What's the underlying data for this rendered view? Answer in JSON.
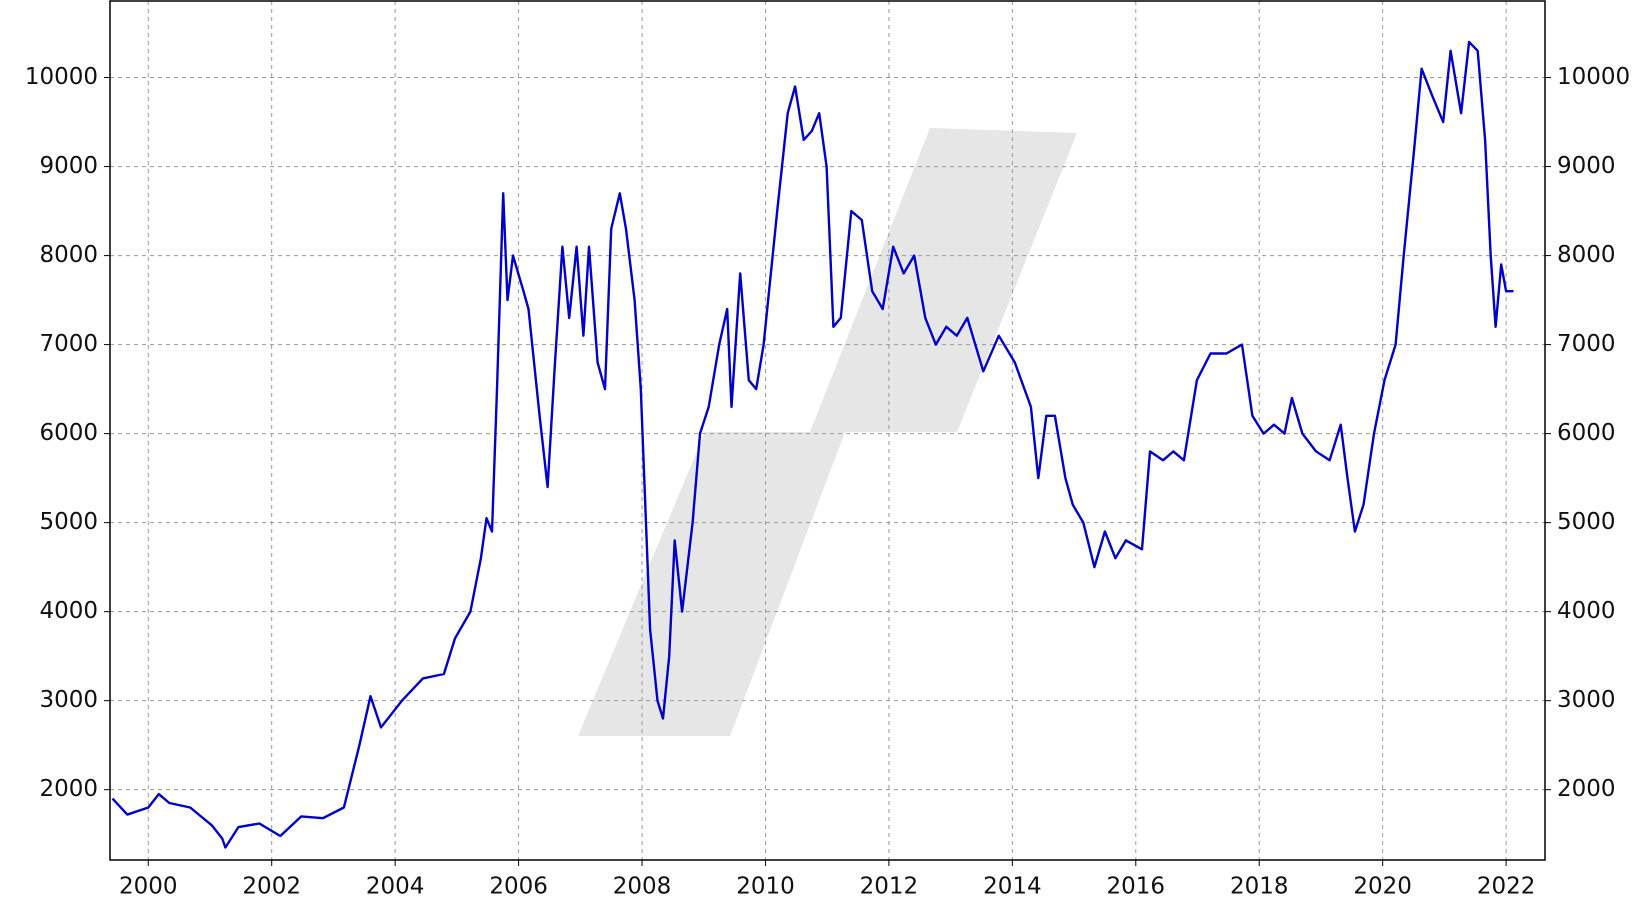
{
  "chart_data": {
    "type": "line",
    "x": [
      1999.42,
      1999.66,
      2000.0,
      2000.17,
      2000.34,
      2000.68,
      2001.03,
      2001.2,
      2001.25,
      2001.46,
      2001.8,
      2002.14,
      2002.48,
      2002.83,
      2003.17,
      2003.42,
      2003.6,
      2003.77,
      2004.11,
      2004.45,
      2004.79,
      2004.97,
      2005.22,
      2005.39,
      2005.48,
      2005.57,
      2005.65,
      2005.75,
      2005.82,
      2005.91,
      2006.08,
      2006.16,
      2006.34,
      2006.47,
      2006.59,
      2006.71,
      2006.82,
      2006.94,
      2007.05,
      2007.14,
      2007.28,
      2007.4,
      2007.5,
      2007.64,
      2007.74,
      2007.88,
      2007.98,
      2008.13,
      2008.25,
      2008.34,
      2008.44,
      2008.53,
      2008.65,
      2008.82,
      2008.94,
      2009.08,
      2009.25,
      2009.38,
      2009.45,
      2009.59,
      2009.73,
      2009.85,
      2009.97,
      2010.19,
      2010.36,
      2010.48,
      2010.62,
      2010.75,
      2010.87,
      2010.99,
      2011.1,
      2011.22,
      2011.39,
      2011.56,
      2011.73,
      2011.9,
      2012.07,
      2012.24,
      2012.41,
      2012.59,
      2012.76,
      2012.93,
      2013.1,
      2013.27,
      2013.53,
      2013.78,
      2014.04,
      2014.3,
      2014.42,
      2014.55,
      2014.69,
      2014.86,
      2014.98,
      2015.15,
      2015.33,
      2015.5,
      2015.67,
      2015.84,
      2016.1,
      2016.23,
      2016.44,
      2016.61,
      2016.78,
      2016.99,
      2017.21,
      2017.47,
      2017.72,
      2017.89,
      2018.07,
      2018.24,
      2018.41,
      2018.53,
      2018.7,
      2018.92,
      2019.14,
      2019.32,
      2019.43,
      2019.55,
      2019.69,
      2019.86,
      2020.03,
      2020.21,
      2020.34,
      2020.51,
      2020.63,
      2020.8,
      2020.98,
      2021.1,
      2021.27,
      2021.4,
      2021.54,
      2021.66,
      2021.75,
      2021.83,
      2021.92,
      2022.0,
      2022.12
    ],
    "series": [
      {
        "color": "#0000cc",
        "values": [
          1900,
          1720,
          1800,
          1950,
          1850,
          1800,
          1600,
          1450,
          1350,
          1580,
          1620,
          1480,
          1700,
          1680,
          1800,
          2500,
          3050,
          2700,
          3000,
          3250,
          3300,
          3700,
          4000,
          4600,
          5050,
          4900,
          6500,
          8700,
          7500,
          8000,
          7600,
          7400,
          6200,
          5400,
          6800,
          8100,
          7300,
          8100,
          7100,
          8100,
          6800,
          6500,
          8300,
          8700,
          8300,
          7500,
          6500,
          3800,
          3000,
          2800,
          3500,
          4800,
          4000,
          5000,
          6000,
          6300,
          7000,
          7400,
          6300,
          7800,
          6600,
          6500,
          7000,
          8500,
          9600,
          9900,
          9300,
          9400,
          9600,
          9000,
          7200,
          7300,
          8500,
          8400,
          7600,
          7400,
          8100,
          7800,
          8000,
          7300,
          7000,
          7200,
          7100,
          7300,
          6700,
          7100,
          6800,
          6300,
          5500,
          6200,
          6200,
          5500,
          5200,
          5000,
          4500,
          4900,
          4600,
          4800,
          4700,
          5800,
          5700,
          5800,
          5700,
          6600,
          6900,
          6900,
          7000,
          6200,
          6000,
          6100,
          6000,
          6400,
          6000,
          5800,
          5700,
          6100,
          5500,
          4900,
          5200,
          6000,
          6600,
          7000,
          8000,
          9200,
          10100,
          9800,
          9500,
          10300,
          9600,
          10400,
          10300,
          9300,
          8000,
          7200,
          7900,
          7600,
          7600
        ]
      }
    ],
    "xlim": [
      1999.38,
      2022.63
    ],
    "xticks": [
      2000,
      2002,
      2004,
      2006,
      2008,
      2010,
      2012,
      2014,
      2016,
      2018,
      2020,
      2022
    ],
    "ylim": [
      1210,
      10860
    ],
    "yticks": [
      2000,
      3000,
      4000,
      5000,
      6000,
      7000,
      8000,
      9000,
      10000
    ],
    "grid": true
  }
}
